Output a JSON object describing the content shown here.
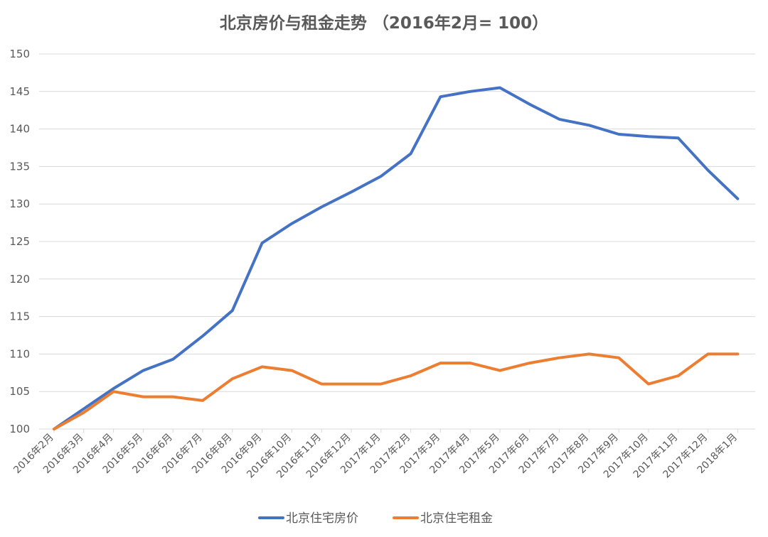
{
  "chart_data": {
    "type": "line",
    "title": "北京房价与租金走势 （2016年2月= 100）",
    "xlabel": "",
    "ylabel": "",
    "ylim": [
      100,
      150
    ],
    "yticks": [
      100,
      105,
      110,
      115,
      120,
      125,
      130,
      135,
      140,
      145,
      150
    ],
    "grid": true,
    "legend_position": "bottom",
    "categories": [
      "2016年2月",
      "2016年3月",
      "2016年4月",
      "2016年5月",
      "2016年6月",
      "2016年7月",
      "2016年8月",
      "2016年9月",
      "2016年10月",
      "2016年11月",
      "2016年12月",
      "2017年1月",
      "2017年2月",
      "2017年3月",
      "2017年4月",
      "2017年5月",
      "2017年6月",
      "2017年7月",
      "2017年8月",
      "2017年9月",
      "2017年10月",
      "2017年11月",
      "2017年12月",
      "2018年1月"
    ],
    "series": [
      {
        "name": "北京住宅房价",
        "color": "#4472C4",
        "values": [
          100,
          102.7,
          105.4,
          107.8,
          109.3,
          112.4,
          115.8,
          124.8,
          127.4,
          129.6,
          131.6,
          133.7,
          136.7,
          144.3,
          145.0,
          145.5,
          143.3,
          141.3,
          140.5,
          139.3,
          139.0,
          138.8,
          134.5,
          130.7
        ]
      },
      {
        "name": "北京住宅租金",
        "color": "#ED7D31",
        "values": [
          100,
          102.2,
          105.0,
          104.3,
          104.3,
          103.8,
          106.7,
          108.3,
          107.8,
          106.0,
          106.0,
          106.0,
          107.1,
          108.8,
          108.8,
          107.8,
          108.8,
          109.5,
          110.0,
          109.5,
          106.0,
          107.1,
          110.0,
          110.0
        ]
      }
    ]
  }
}
